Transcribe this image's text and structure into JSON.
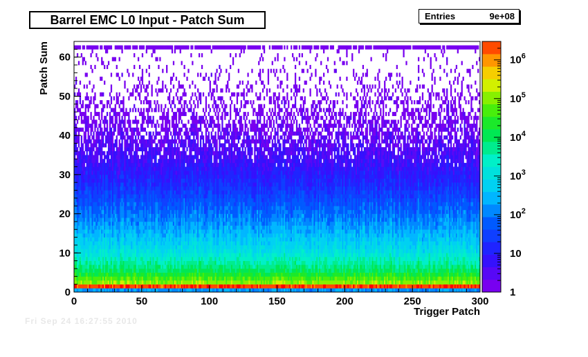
{
  "chart_data": {
    "type": "heatmap",
    "title": "Barrel EMC L0 Input - Patch Sum",
    "xlabel": "Trigger Patch",
    "ylabel": "Patch Sum",
    "xlim": [
      0,
      300
    ],
    "ylim": [
      0,
      64
    ],
    "x_ticks": [
      "0",
      "50",
      "100",
      "150",
      "200",
      "250",
      "300"
    ],
    "y_ticks": [
      "0",
      "10",
      "20",
      "30",
      "40",
      "50",
      "60"
    ],
    "color_scale": "log",
    "zlim": [
      1,
      3000000
    ],
    "colorbar_ticks": [
      {
        "value": 1,
        "label": "1"
      },
      {
        "value": 10,
        "label": "10"
      },
      {
        "value": 100,
        "label": "10",
        "exp": "2"
      },
      {
        "value": 1000,
        "label": "10",
        "exp": "3"
      },
      {
        "value": 10000,
        "label": "10",
        "exp": "4"
      },
      {
        "value": 100000,
        "label": "10",
        "exp": "5"
      },
      {
        "value": 1000000,
        "label": "10",
        "exp": "6"
      }
    ],
    "stats": {
      "label": "Entries",
      "value": "9e+08"
    },
    "profile_bins_log10": [
      {
        "bin": 0,
        "log10": 2.2
      },
      {
        "bin": 1,
        "log10": 6.4
      },
      {
        "bin": 2,
        "log10": 5.0
      },
      {
        "bin": 5,
        "log10": 4.0
      },
      {
        "bin": 10,
        "log10": 3.0
      },
      {
        "bin": 16,
        "log10": 2.3
      },
      {
        "bin": 22,
        "log10": 1.7
      },
      {
        "bin": 28,
        "log10": 1.1
      },
      {
        "bin": 35,
        "log10": 0.6
      },
      {
        "bin": 42,
        "log10": 0.25
      },
      {
        "bin": 50,
        "log10": 0.0
      },
      {
        "bin": 62,
        "log10": 0.0
      }
    ]
  },
  "stats_box": {
    "label": "Entries",
    "value": "9e+08"
  },
  "title": "Barrel EMC L0 Input - Patch Sum",
  "footer": "Fri Sep 24 16:27:55 2010"
}
